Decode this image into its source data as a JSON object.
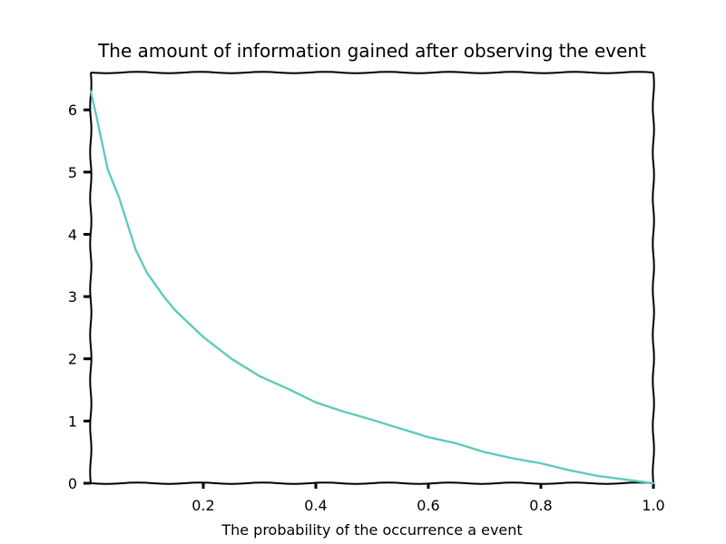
{
  "chart_data": {
    "type": "line",
    "title": "The amount of information gained after observing the event",
    "xlabel": "The probability of the occurrence a event",
    "ylabel": "",
    "xlim": [
      0.0,
      1.0
    ],
    "ylim": [
      0,
      6.6
    ],
    "xticks": [
      0.2,
      0.4,
      0.6,
      0.8,
      1.0
    ],
    "xtick_labels": [
      "0.2",
      "0.4",
      "0.6",
      "0.8",
      "1.0"
    ],
    "yticks": [
      0,
      1,
      2,
      3,
      4,
      5,
      6
    ],
    "ytick_labels": [
      "0",
      "1",
      "2",
      "3",
      "4",
      "5",
      "6"
    ],
    "grid": false,
    "series": [
      {
        "color": "#5ecbbd",
        "x": [
          0.0,
          0.01,
          0.03,
          0.05,
          0.08,
          0.1,
          0.13,
          0.15,
          0.2,
          0.25,
          0.3,
          0.35,
          0.4,
          0.45,
          0.5,
          0.55,
          0.6,
          0.65,
          0.7,
          0.75,
          0.8,
          0.85,
          0.9,
          0.95,
          1.0
        ],
        "y": [
          6.3,
          5.9,
          5.05,
          4.6,
          3.75,
          3.38,
          3.0,
          2.78,
          2.35,
          2.0,
          1.72,
          1.52,
          1.3,
          1.15,
          1.02,
          0.88,
          0.74,
          0.64,
          0.5,
          0.4,
          0.32,
          0.21,
          0.12,
          0.06,
          0.0
        ]
      }
    ]
  }
}
